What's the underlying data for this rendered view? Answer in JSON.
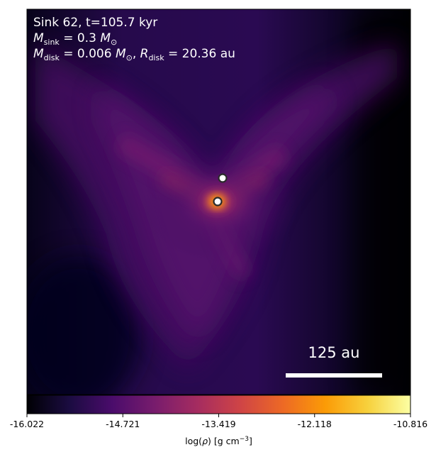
{
  "annotations": {
    "line1": "Sink 62, t=105.7 kyr",
    "line2_sym": "M",
    "line2_sub": "sink",
    "line2_eq": " = 0.3 ",
    "line2_unit_sym": "M",
    "line2_unit_sub": "⊙",
    "line3_sym": "M",
    "line3_sub": "disk",
    "line3_eq": " = 0.006 ",
    "line3_unit_sym": "M",
    "line3_unit_sub": "⊙",
    "line3_sep": ", ",
    "line3_sym2": "R",
    "line3_sub2": "disk",
    "line3_eq2": " = 20.36 au"
  },
  "scalebar": {
    "label": "125 au",
    "length_au": 125
  },
  "colorbar": {
    "label_prefix": "log(",
    "label_rho": "ρ",
    "label_mid": ") [g cm",
    "label_exp": "−3",
    "label_suffix": "]",
    "ticks": [
      "-16.022",
      "-14.721",
      "-13.419",
      "-12.118",
      "-10.816"
    ],
    "range": [
      -16.022,
      -10.816
    ],
    "colormap": "inferno-like",
    "stops": [
      "#000004",
      "#1b0c41",
      "#4a0c6b",
      "#781c6d",
      "#a52c60",
      "#cf4446",
      "#ed6925",
      "#fb9b06",
      "#f7d13d",
      "#fcffa4"
    ]
  },
  "chart_data": {
    "type": "heatmap",
    "quantity": "log(rho) [g cm^-3]",
    "vmin": -16.022,
    "vmax": -10.816,
    "sinks": [
      {
        "name": "sink-62",
        "x_au": 0,
        "y_au": 0
      },
      {
        "name": "companion",
        "x_au": 5,
        "y_au": 30
      }
    ]
  },
  "colors": {
    "text": "#ffffff",
    "sink_fill": "#ffffff",
    "sink_edge": "#2b2b2b",
    "frame": "#000000"
  }
}
